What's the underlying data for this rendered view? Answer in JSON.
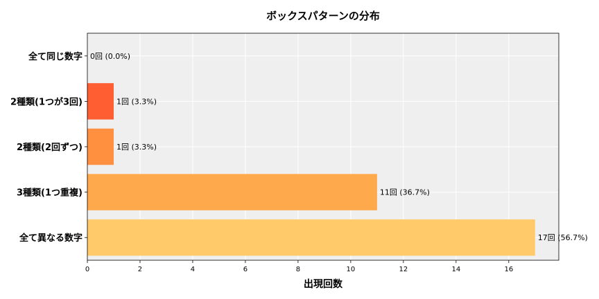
{
  "chart_data": {
    "type": "bar",
    "orientation": "horizontal",
    "title": "ボックスパターンの分布",
    "xlabel": "出現回数",
    "ylabel": "",
    "categories": [
      "全て同じ数字",
      "2種類(1つが3回)",
      "2種類(2回ずつ)",
      "3種類(1つ重複)",
      "全て異なる数字"
    ],
    "values": [
      0,
      1,
      1,
      11,
      17
    ],
    "data_labels": [
      "0回 (0.0%)",
      "1回 (3.3%)",
      "1回 (3.3%)",
      "11回 (36.7%)",
      "17回 (56.7%)"
    ],
    "colors": [
      "#ff4500",
      "#ff5e33",
      "#ff9040",
      "#ffa94d",
      "#ffca6a"
    ],
    "xlim": [
      0,
      17.9
    ],
    "xticks": [
      0,
      2,
      4,
      6,
      8,
      10,
      12,
      14,
      16
    ],
    "grid": true,
    "background": "#efefef",
    "legend": "none"
  }
}
